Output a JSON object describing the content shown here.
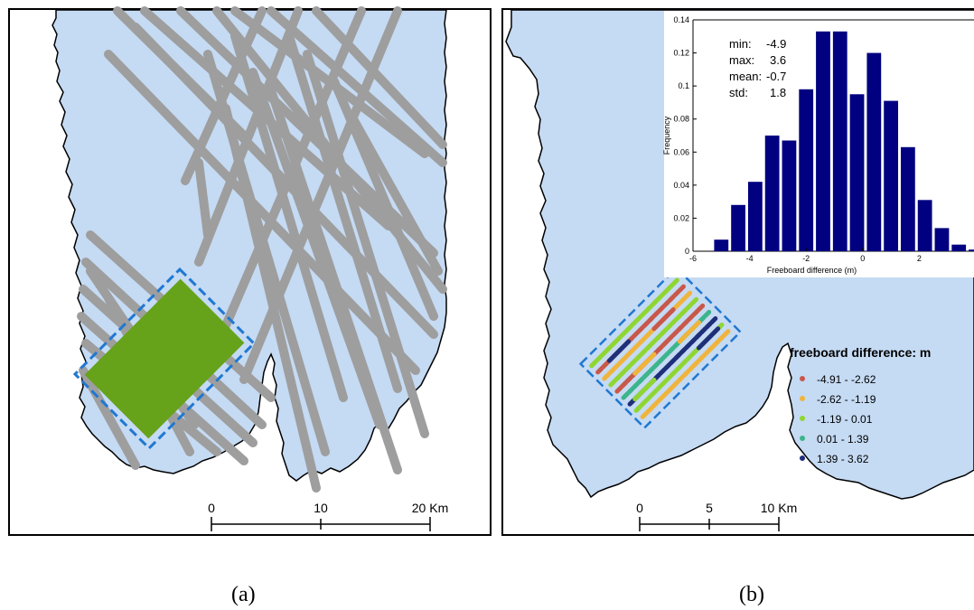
{
  "panel_a": {
    "caption": "(a)",
    "scale_bar": {
      "ticks": [
        "0",
        "10",
        "20 Km"
      ]
    }
  },
  "panel_b": {
    "caption": "(b)",
    "scale_bar": {
      "ticks": [
        "0",
        "5",
        "10 Km"
      ]
    },
    "legend": {
      "title": "freeboard difference: m",
      "items": [
        {
          "label": "-4.91 - -2.62",
          "color": "#c8584a"
        },
        {
          "label": "-2.62 - -1.19",
          "color": "#f0b43c"
        },
        {
          "label": "-1.19 - 0.01",
          "color": "#8fd632"
        },
        {
          "label": "0.01 - 1.39",
          "color": "#3cb48c"
        },
        {
          "label": "1.39 - 3.62",
          "color": "#1e2f7a"
        }
      ]
    },
    "stats": [
      {
        "label": "min:",
        "value": "-4.9"
      },
      {
        "label": "max:",
        "value": "3.6"
      },
      {
        "label": "mean:",
        "value": "-0.7"
      },
      {
        "label": "std:",
        "value": "1.8"
      }
    ]
  },
  "chart_data": {
    "type": "bar",
    "xlabel": "Freeboard difference (m)",
    "ylabel": "Frequency",
    "xlim": [
      -6,
      4
    ],
    "ylim": [
      0,
      0.14
    ],
    "xticks": [
      "-6",
      "-4",
      "-2",
      "0",
      "2"
    ],
    "yticks": [
      "0",
      "0.02",
      "0.04",
      "0.06",
      "0.08",
      "0.1",
      "0.12",
      "0.14"
    ],
    "bin_width": 0.6,
    "bin_centers": [
      -5.0,
      -4.4,
      -3.8,
      -3.2,
      -2.6,
      -2.0,
      -1.4,
      -0.8,
      -0.2,
      0.4,
      1.0,
      1.6,
      2.2,
      2.8,
      3.4,
      4.0
    ],
    "values": [
      0.007,
      0.028,
      0.042,
      0.07,
      0.067,
      0.098,
      0.133,
      0.133,
      0.095,
      0.12,
      0.091,
      0.063,
      0.031,
      0.014,
      0.004,
      0.001
    ],
    "bar_color": "#000080"
  },
  "colors": {
    "ice": "#c5daf3",
    "track": "#9e9e9e",
    "green_area": "#66a31a",
    "box": "#1f78d1"
  }
}
